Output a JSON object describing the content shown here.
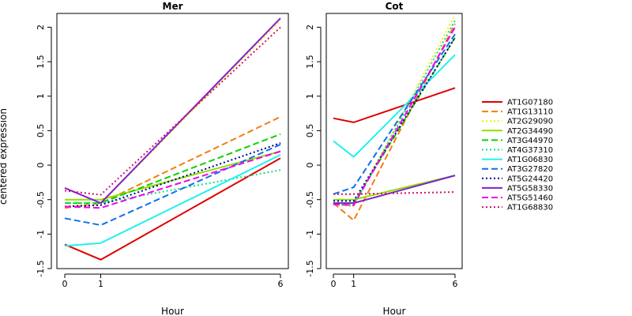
{
  "chart_data": {
    "type": "line",
    "ylabel": "centered expression",
    "legend_position": "right",
    "grid": false,
    "panels": [
      {
        "title": "Mer",
        "xlabel": "Hour",
        "categories": [
          "0",
          "1",
          "6"
        ],
        "ylim": [
          -1.5,
          2.2
        ],
        "yticks": [
          -1.5,
          -1.0,
          -0.5,
          0.0,
          0.5,
          1.0,
          1.5,
          2.0
        ],
        "series": [
          {
            "name": "AT1G07180",
            "values": [
              -1.15,
              -1.37,
              0.1
            ]
          },
          {
            "name": "AT1G13110",
            "values": [
              -0.62,
              -0.55,
              0.7
            ]
          },
          {
            "name": "AT2G29090",
            "values": [
              -0.6,
              -0.56,
              2.1
            ]
          },
          {
            "name": "AT2G34490",
            "values": [
              -0.5,
              -0.5,
              0.2
            ]
          },
          {
            "name": "AT3G44970",
            "values": [
              -0.55,
              -0.55,
              0.45
            ]
          },
          {
            "name": "AT4G37310",
            "values": [
              -0.55,
              -0.55,
              -0.07
            ]
          },
          {
            "name": "AT1G06830",
            "values": [
              -1.17,
              -1.13,
              0.15
            ]
          },
          {
            "name": "AT3G27820",
            "values": [
              -0.77,
              -0.87,
              0.3
            ]
          },
          {
            "name": "AT5G24420",
            "values": [
              -0.6,
              -0.58,
              0.32
            ]
          },
          {
            "name": "AT5G58330",
            "values": [
              -0.33,
              -0.55,
              2.13
            ]
          },
          {
            "name": "AT5G51460",
            "values": [
              -0.6,
              -0.62,
              0.2
            ]
          },
          {
            "name": "AT1G68830",
            "values": [
              -0.37,
              -0.43,
              2.0
            ]
          }
        ]
      },
      {
        "title": "Cot",
        "xlabel": "Hour",
        "categories": [
          "0",
          "1",
          "6"
        ],
        "ylim": [
          -1.5,
          2.2
        ],
        "yticks": [
          -1.5,
          -1.0,
          -0.5,
          0.0,
          0.5,
          1.0,
          1.5,
          2.0
        ],
        "series": [
          {
            "name": "AT1G07180",
            "values": [
              0.68,
              0.62,
              1.12
            ]
          },
          {
            "name": "AT1G13110",
            "values": [
              -0.55,
              -0.8,
              2.05
            ]
          },
          {
            "name": "AT2G29090",
            "values": [
              -0.57,
              -0.6,
              2.18
            ]
          },
          {
            "name": "AT2G34490",
            "values": [
              -0.5,
              -0.5,
              -0.15
            ]
          },
          {
            "name": "AT3G44970",
            "values": [
              -0.55,
              -0.55,
              1.85
            ]
          },
          {
            "name": "AT4G37310",
            "values": [
              -0.57,
              -0.58,
              2.1
            ]
          },
          {
            "name": "AT1G06830",
            "values": [
              0.35,
              0.12,
              1.6
            ]
          },
          {
            "name": "AT3G27820",
            "values": [
              -0.42,
              -0.32,
              1.9
            ]
          },
          {
            "name": "AT5G24420",
            "values": [
              -0.52,
              -0.52,
              1.85
            ]
          },
          {
            "name": "AT5G58330",
            "values": [
              -0.55,
              -0.55,
              -0.15
            ]
          },
          {
            "name": "AT5G51460",
            "values": [
              -0.57,
              -0.58,
              2.0
            ]
          },
          {
            "name": "AT1G68830",
            "values": [
              -0.42,
              -0.42,
              -0.39
            ]
          }
        ]
      }
    ],
    "legend": [
      {
        "name": "AT1G07180",
        "color": "#e00000",
        "dash": "solid"
      },
      {
        "name": "AT1G13110",
        "color": "#f08010",
        "dash": "dashed"
      },
      {
        "name": "AT2G29090",
        "color": "#f0f000",
        "dash": "dotted"
      },
      {
        "name": "AT2G34490",
        "color": "#90e000",
        "dash": "solid"
      },
      {
        "name": "AT3G44970",
        "color": "#10d000",
        "dash": "dashed"
      },
      {
        "name": "AT4G37310",
        "color": "#10e080",
        "dash": "dotted"
      },
      {
        "name": "AT1G06830",
        "color": "#20f0f0",
        "dash": "solid"
      },
      {
        "name": "AT3G27820",
        "color": "#1070f0",
        "dash": "dashed"
      },
      {
        "name": "AT5G24420",
        "color": "#0000a0",
        "dash": "dotted"
      },
      {
        "name": "AT5G58330",
        "color": "#8020d0",
        "dash": "solid"
      },
      {
        "name": "AT5G51460",
        "color": "#f000f0",
        "dash": "dashed"
      },
      {
        "name": "AT1G68830",
        "color": "#d0106a",
        "dash": "dotted"
      }
    ]
  }
}
